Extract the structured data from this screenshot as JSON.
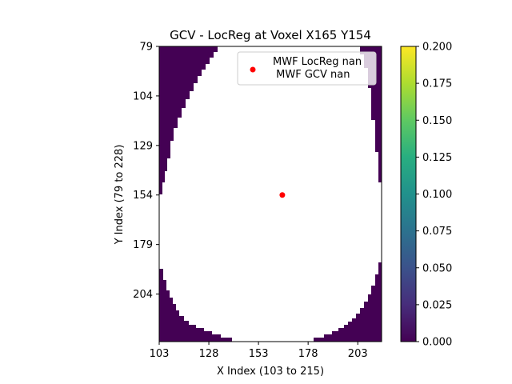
{
  "chart_data": {
    "type": "heatmap",
    "title": "GCV - LocReg at Voxel X165 Y154",
    "xlabel": "X Index (103 to 215)",
    "ylabel": "Y Index (79 to 228)",
    "xlim": [
      103,
      215
    ],
    "ylim": [
      79,
      228
    ],
    "y_inverted": true,
    "x_ticks": [
      103,
      128,
      153,
      178,
      203
    ],
    "y_ticks": [
      79,
      104,
      129,
      154,
      179,
      204
    ],
    "colormap": "viridis",
    "color_range": [
      0.0,
      0.2
    ],
    "colorbar_ticks": [
      "0.000",
      "0.025",
      "0.050",
      "0.075",
      "0.100",
      "0.125",
      "0.150",
      "0.175",
      "0.200"
    ],
    "background_value": 0.0,
    "masked_region": "brain mask shown as white (NaN)",
    "points": [
      {
        "x": 165,
        "y": 154,
        "color": "#ff0000"
      }
    ],
    "legend": {
      "placement": "upper right",
      "entries": [
        {
          "label_line1": "MWF LocReg nan",
          "label_line2": " MWF GCV nan",
          "color": "#ff0000"
        }
      ]
    },
    "colors": {
      "background": "#440154",
      "mask": "#ffffff",
      "marker": "#ff0000"
    }
  }
}
